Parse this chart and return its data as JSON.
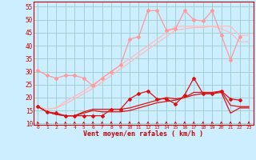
{
  "xlabel": "Vent moyen/en rafales ( km/h )",
  "background_color": "#cceeff",
  "grid_color": "#99cccc",
  "x": [
    0,
    1,
    2,
    3,
    4,
    5,
    6,
    7,
    8,
    9,
    10,
    11,
    12,
    13,
    14,
    15,
    16,
    17,
    18,
    19,
    20,
    21,
    22,
    23
  ],
  "ylim": [
    9.5,
    57
  ],
  "yticks": [
    10,
    15,
    20,
    25,
    30,
    35,
    40,
    45,
    50,
    55
  ],
  "series": [
    {
      "color": "#ff9999",
      "linewidth": 0.9,
      "marker": "D",
      "markersize": 2.0,
      "values": [
        30.5,
        28.5,
        27.5,
        28.5,
        28.5,
        27.5,
        24.5,
        27.5,
        30.0,
        32.5,
        42.5,
        43.5,
        53.5,
        53.5,
        46.0,
        46.5,
        53.5,
        50.0,
        49.5,
        53.5,
        44.0,
        34.5,
        43.5,
        null
      ]
    },
    {
      "color": "#ffbbbb",
      "linewidth": 0.9,
      "marker": null,
      "markersize": 0,
      "values": [
        16.5,
        15.5,
        16.0,
        18.5,
        20.5,
        22.5,
        25.0,
        27.5,
        30.0,
        32.5,
        35.0,
        37.5,
        40.0,
        42.5,
        45.0,
        47.5,
        47.5,
        47.5,
        47.5,
        47.5,
        47.5,
        47.5,
        44.0,
        44.0
      ]
    },
    {
      "color": "#ffbbbb",
      "linewidth": 0.9,
      "marker": null,
      "markersize": 0,
      "values": [
        16.5,
        15.5,
        16.0,
        17.5,
        19.5,
        21.5,
        23.5,
        26.0,
        28.5,
        31.0,
        33.5,
        36.0,
        38.5,
        41.0,
        43.5,
        46.0,
        46.5,
        47.0,
        47.0,
        47.5,
        46.5,
        45.0,
        41.5,
        41.5
      ]
    },
    {
      "color": "#dd1111",
      "linewidth": 0.9,
      "marker": "D",
      "markersize": 2.0,
      "values": [
        16.5,
        14.5,
        14.0,
        13.0,
        13.0,
        13.0,
        13.0,
        13.0,
        15.5,
        15.5,
        19.5,
        21.5,
        22.5,
        19.5,
        19.5,
        17.5,
        21.0,
        27.5,
        21.5,
        21.5,
        22.5,
        19.5,
        19.0,
        null
      ]
    },
    {
      "color": "#dd1111",
      "linewidth": 0.9,
      "marker": null,
      "markersize": 0,
      "values": [
        16.5,
        14.5,
        13.5,
        13.0,
        13.0,
        14.5,
        15.5,
        15.5,
        15.5,
        15.5,
        16.0,
        17.0,
        18.0,
        19.0,
        20.0,
        19.5,
        20.0,
        22.0,
        22.0,
        22.0,
        22.5,
        17.0,
        16.5,
        16.5
      ]
    },
    {
      "color": "#dd1111",
      "linewidth": 0.9,
      "marker": null,
      "markersize": 0,
      "values": [
        16.5,
        14.5,
        13.5,
        13.0,
        13.0,
        14.0,
        15.0,
        14.5,
        14.5,
        14.5,
        15.0,
        16.0,
        17.0,
        18.0,
        18.5,
        19.0,
        20.0,
        21.0,
        21.5,
        21.5,
        22.0,
        14.0,
        16.0,
        16.0
      ]
    }
  ],
  "arrows_color": "#dd1111",
  "arrow_angles_deg": [
    135,
    135,
    120,
    110,
    105,
    100,
    95,
    90,
    90,
    90,
    90,
    85,
    85,
    90,
    90,
    90,
    90,
    90,
    90,
    100,
    90,
    90,
    95,
    90
  ]
}
